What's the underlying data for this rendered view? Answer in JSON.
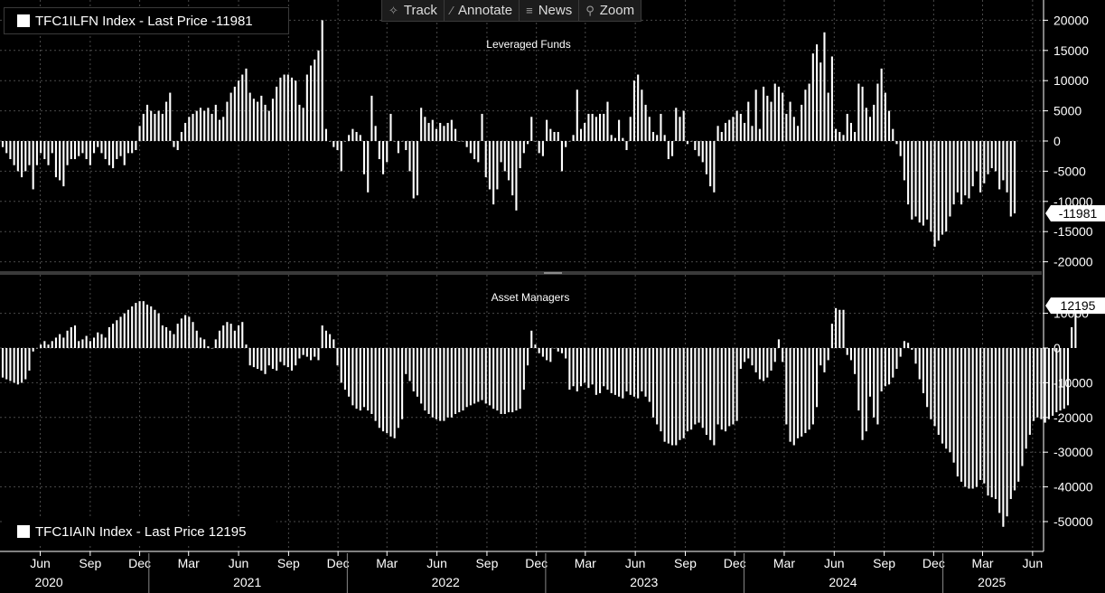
{
  "toolbar": {
    "track_label": "Track",
    "annotate_label": "Annotate",
    "news_label": "News",
    "zoom_label": "Zoom",
    "track_icon": "crosshair-icon",
    "annotate_icon": "pencil-icon",
    "news_icon": "news-icon",
    "zoom_icon": "magnifier-icon"
  },
  "colors": {
    "background": "#000000",
    "bars": "#ffffff",
    "grid": "#4a4a4a",
    "text": "#ffffff",
    "divider": "#5a5a5a"
  },
  "chart_data": [
    {
      "type": "bar",
      "title": "Leveraged Funds",
      "legend_text": "TFC1ILFN Index - Last Price -11981",
      "last_value_label": "-11981",
      "x_start": "2020-04-07",
      "x_step": "weekly",
      "ylim": [
        -22000,
        22000
      ],
      "yticks": [
        20000,
        15000,
        10000,
        5000,
        0,
        -5000,
        -10000,
        -15000,
        -20000
      ],
      "ytick_labels": [
        "20000",
        "15000",
        "10000",
        "5000",
        "0",
        "-5000",
        "-10000",
        "-15000",
        "-20000"
      ],
      "grid": true,
      "legend_placement": "top-left",
      "values": [
        -1000,
        -2000,
        -3000,
        -4000,
        -5000,
        -6000,
        -5000,
        -4000,
        -8000,
        -4000,
        -2000,
        -3000,
        -4000,
        -2000,
        -6000,
        -6500,
        -7500,
        -4000,
        -3000,
        -3000,
        -2500,
        -2000,
        -3000,
        -4000,
        -2000,
        -1000,
        -2000,
        -3000,
        -4000,
        -4500,
        -3000,
        -2500,
        -4000,
        -2000,
        -2000,
        -1500,
        2500,
        4500,
        6000,
        5000,
        4500,
        5000,
        4500,
        6500,
        8000,
        -1000,
        -1500,
        1500,
        3000,
        4000,
        4500,
        5000,
        5500,
        5000,
        5500,
        4500,
        6000,
        3500,
        4000,
        6500,
        8000,
        9000,
        10000,
        11000,
        12000,
        8000,
        7000,
        6500,
        7500,
        6000,
        5000,
        7000,
        9000,
        10500,
        11000,
        11000,
        10500,
        10000,
        6000,
        5500,
        11000,
        12500,
        13500,
        15000,
        20000,
        2000,
        0,
        -1000,
        -1500,
        -5000,
        0,
        1000,
        2000,
        1500,
        1000,
        -5500,
        -8500,
        7500,
        2500,
        -3000,
        -5500,
        -3500,
        4500,
        0,
        -2000,
        0,
        -1500,
        -5000,
        -9500,
        -9000,
        5500,
        4000,
        3000,
        3500,
        2000,
        3000,
        2500,
        3000,
        3500,
        2000,
        0,
        0,
        -1000,
        -2000,
        -3000,
        -3500,
        4500,
        -6000,
        -8000,
        -10500,
        -8000,
        -3500,
        -5000,
        -6500,
        -9000,
        -11500,
        -4500,
        -2000,
        -500,
        4000,
        0,
        -2000,
        -2500,
        3500,
        2000,
        1500,
        1500,
        -5000,
        -1000,
        0,
        1000,
        8500,
        2000,
        3000,
        4500,
        4500,
        4000,
        4500,
        4500,
        6500,
        1000,
        500,
        3500,
        500,
        -1500,
        4000,
        10000,
        11000,
        8500,
        6000,
        4000,
        1500,
        1000,
        4500,
        1000,
        -3000,
        -2500,
        5500,
        4000,
        5000,
        -500,
        0,
        -1500,
        -2500,
        -3500,
        -5500,
        -7500,
        -8500,
        2500,
        1500,
        3000,
        3500,
        4000,
        5000,
        4500,
        3000,
        6500,
        2500,
        8500,
        2000,
        9000,
        7500,
        6500,
        9500,
        9000,
        8000,
        4500,
        6500,
        4000,
        2500,
        6000,
        8500,
        9500,
        14500,
        16000,
        13000,
        18000,
        8000,
        14000,
        2000,
        1500,
        1000,
        4500,
        3000,
        1500,
        9500,
        9000,
        5500,
        4000,
        6000,
        9500,
        12000,
        8000,
        5000,
        2000,
        -500,
        -2500,
        -6500,
        -10500,
        -13000,
        -12500,
        -13500,
        -14000,
        -13000,
        -15000,
        -17500,
        -16500,
        -15500,
        -15000,
        -12500,
        -10500,
        -8500,
        -10500,
        -9000,
        -9500,
        -7500,
        -5000,
        -8500,
        -7000,
        -5500,
        -4500,
        -5000,
        -8000,
        -6500,
        -8500,
        -12500,
        -11981
      ]
    },
    {
      "type": "bar",
      "title": "Asset Managers",
      "legend_text": "TFC1IAIN Index - Last Price 12195",
      "last_value_label": "12195",
      "x_start": "2020-04-07",
      "x_step": "weekly",
      "ylim": [
        -58000,
        22000
      ],
      "yticks": [
        10000,
        0,
        -10000,
        -20000,
        -30000,
        -40000,
        -50000
      ],
      "ytick_labels": [
        "10000",
        "0",
        "-10000",
        "-20000",
        "-30000",
        "-40000",
        "-50000"
      ],
      "grid": true,
      "legend_placement": "bottom-left",
      "values": [
        -8500,
        -9000,
        -9500,
        -10000,
        -10500,
        -10000,
        -9000,
        -6500,
        -1000,
        0,
        1000,
        2000,
        1000,
        2000,
        3000,
        4000,
        3000,
        5000,
        6000,
        6500,
        2000,
        2500,
        3500,
        2000,
        3000,
        4500,
        4000,
        3000,
        6000,
        7000,
        8000,
        9000,
        10000,
        11000,
        12000,
        13000,
        13500,
        13500,
        12500,
        12000,
        11000,
        10000,
        6500,
        6000,
        5000,
        4000,
        7000,
        8500,
        9500,
        9000,
        7500,
        5000,
        3000,
        2500,
        500,
        0,
        2500,
        5000,
        6500,
        7500,
        7000,
        5000,
        6500,
        7500,
        1000,
        -5000,
        -5500,
        -6000,
        -6500,
        -7500,
        -5000,
        -6000,
        -6500,
        -4000,
        -5000,
        -5500,
        -6500,
        -5000,
        -3000,
        -2000,
        -2500,
        -3500,
        -2500,
        -3500,
        6500,
        5000,
        4000,
        2500,
        -5000,
        -10000,
        -12000,
        -14000,
        -16500,
        -17500,
        -18000,
        -17000,
        -18000,
        -19000,
        -21000,
        -23000,
        -24000,
        -24500,
        -25500,
        -26000,
        -23000,
        -20500,
        -7500,
        -9500,
        -12500,
        -14000,
        -16000,
        -18000,
        -19000,
        -20000,
        -20500,
        -21000,
        -21000,
        -20000,
        -20000,
        -19000,
        -18500,
        -18000,
        -17000,
        -16500,
        -16000,
        -15500,
        -15000,
        -16000,
        -16500,
        -17500,
        -18000,
        -19000,
        -19000,
        -18500,
        -18500,
        -18000,
        -17500,
        -12000,
        -5000,
        5000,
        1000,
        -1500,
        -2500,
        -3500,
        -4000,
        0,
        -1000,
        -1500,
        -3000,
        -12000,
        -11000,
        -12500,
        -11000,
        -10000,
        -11500,
        -10500,
        -13500,
        -13000,
        -11000,
        -12000,
        -13000,
        -13500,
        -14000,
        -14500,
        -12500,
        -13500,
        -14000,
        -14500,
        -12500,
        -14000,
        -15500,
        -20000,
        -22000,
        -24000,
        -27000,
        -27500,
        -28000,
        -28000,
        -26500,
        -26000,
        -24000,
        -23500,
        -22000,
        -21500,
        -23000,
        -25000,
        -26500,
        -28000,
        -22000,
        -23500,
        -24000,
        -22500,
        -22000,
        -21000,
        -6000,
        -4000,
        -3000,
        -5000,
        -7000,
        -9000,
        -9500,
        -8500,
        -6500,
        -4000,
        2500,
        -4000,
        -22000,
        -27000,
        -28000,
        -26000,
        -25500,
        -24500,
        -23500,
        -22000,
        -17000,
        -5000,
        -7000,
        -3500,
        7000,
        11500,
        11000,
        11000,
        -2000,
        -3500,
        -7500,
        -18000,
        -26500,
        -24000,
        -14000,
        -20000,
        -22000,
        -12500,
        -11000,
        -10500,
        -8500,
        -6000,
        -2500,
        2000,
        1500,
        -500,
        -4500,
        -9000,
        -13000,
        -17000,
        -20500,
        -22500,
        -25000,
        -27500,
        -29000,
        -30000,
        -33000,
        -37000,
        -38500,
        -40000,
        -40500,
        -40500,
        -40000,
        -38000,
        -39000,
        -42500,
        -43000,
        -43500,
        -47500,
        -51500,
        -48500,
        -43500,
        -41000,
        -38500,
        -34000,
        -29000,
        -25000,
        -21000,
        -20000,
        -20500,
        -21500,
        -20500,
        -19500,
        -18500,
        -18000,
        -17500,
        -16500,
        6000,
        12195
      ]
    }
  ],
  "x_axis": {
    "month_ticks": [
      {
        "label": "Jun",
        "date": "2020-06-15"
      },
      {
        "label": "Sep",
        "date": "2020-09-15"
      },
      {
        "label": "Dec",
        "date": "2020-12-15"
      },
      {
        "label": "Mar",
        "date": "2021-03-15"
      },
      {
        "label": "Jun",
        "date": "2021-06-15"
      },
      {
        "label": "Sep",
        "date": "2021-09-15"
      },
      {
        "label": "Dec",
        "date": "2021-12-15"
      },
      {
        "label": "Mar",
        "date": "2022-03-15"
      },
      {
        "label": "Jun",
        "date": "2022-06-15"
      },
      {
        "label": "Sep",
        "date": "2022-09-15"
      },
      {
        "label": "Dec",
        "date": "2022-12-15"
      },
      {
        "label": "Mar",
        "date": "2023-03-15"
      },
      {
        "label": "Jun",
        "date": "2023-06-15"
      },
      {
        "label": "Sep",
        "date": "2023-09-15"
      },
      {
        "label": "Dec",
        "date": "2023-12-15"
      },
      {
        "label": "Mar",
        "date": "2024-03-15"
      },
      {
        "label": "Jun",
        "date": "2024-06-15"
      },
      {
        "label": "Sep",
        "date": "2024-09-15"
      },
      {
        "label": "Dec",
        "date": "2024-12-15"
      },
      {
        "label": "Mar",
        "date": "2025-03-15"
      },
      {
        "label": "Jun",
        "date": "2025-06-15"
      }
    ],
    "years": [
      {
        "label": "2020",
        "date": "2020-07-01"
      },
      {
        "label": "2021",
        "date": "2021-07-01"
      },
      {
        "label": "2022",
        "date": "2022-07-01"
      },
      {
        "label": "2023",
        "date": "2023-07-01"
      },
      {
        "label": "2024",
        "date": "2024-07-01"
      },
      {
        "label": "2025",
        "date": "2025-04-01"
      }
    ],
    "year_boundaries": [
      "2021-01-01",
      "2022-01-01",
      "2023-01-01",
      "2024-01-01",
      "2025-01-01"
    ]
  }
}
